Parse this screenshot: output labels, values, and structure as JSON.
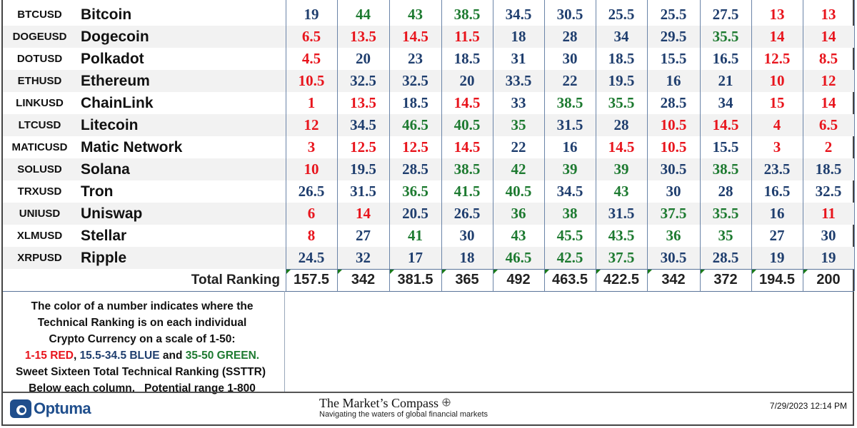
{
  "rows": [
    {
      "ticker": "BTCUSD",
      "name": "Bitcoin",
      "values": [
        19,
        44,
        43,
        38.5,
        34.5,
        30.5,
        25.5,
        25.5,
        27.5,
        13,
        13
      ]
    },
    {
      "ticker": "DOGEUSD",
      "name": "Dogecoin",
      "values": [
        6.5,
        13.5,
        14.5,
        11.5,
        18,
        28,
        34,
        29.5,
        35.5,
        14,
        14
      ]
    },
    {
      "ticker": "DOTUSD",
      "name": "Polkadot",
      "values": [
        4.5,
        20,
        23,
        18.5,
        31,
        30,
        18.5,
        15.5,
        16.5,
        12.5,
        8.5
      ]
    },
    {
      "ticker": "ETHUSD",
      "name": "Ethereum",
      "values": [
        10.5,
        32.5,
        32.5,
        20,
        33.5,
        22,
        19.5,
        16,
        21,
        10,
        12
      ]
    },
    {
      "ticker": "LINKUSD",
      "name": "ChainLink",
      "values": [
        1,
        13.5,
        18.5,
        14.5,
        33,
        38.5,
        35.5,
        28.5,
        34,
        15,
        14
      ]
    },
    {
      "ticker": "LTCUSD",
      "name": "Litecoin",
      "values": [
        12,
        34.5,
        46.5,
        40.5,
        35,
        31.5,
        28,
        10.5,
        14.5,
        4,
        6.5
      ]
    },
    {
      "ticker": "MATICUSD",
      "name": "Matic Network",
      "values": [
        3,
        12.5,
        12.5,
        14.5,
        22,
        16,
        14.5,
        10.5,
        15.5,
        3,
        2
      ]
    },
    {
      "ticker": "SOLUSD",
      "name": "Solana",
      "values": [
        10,
        19.5,
        28.5,
        38.5,
        42,
        39,
        39,
        30.5,
        38.5,
        23.5,
        18.5
      ]
    },
    {
      "ticker": "TRXUSD",
      "name": "Tron",
      "values": [
        26.5,
        31.5,
        36.5,
        41.5,
        40.5,
        34.5,
        43,
        30,
        28,
        16.5,
        32.5
      ]
    },
    {
      "ticker": "UNIUSD",
      "name": "Uniswap",
      "values": [
        6,
        14,
        20.5,
        26.5,
        36,
        38,
        31.5,
        37.5,
        35.5,
        16,
        11
      ]
    },
    {
      "ticker": "XLMUSD",
      "name": "Stellar",
      "values": [
        8,
        27,
        41,
        30,
        43,
        45.5,
        43.5,
        36,
        35,
        27,
        30
      ]
    },
    {
      "ticker": "XRPUSD",
      "name": "Ripple",
      "values": [
        24.5,
        32,
        17,
        18,
        46.5,
        42.5,
        37.5,
        30.5,
        28.5,
        19,
        19
      ]
    }
  ],
  "total": {
    "label": "Total Ranking",
    "values": [
      "157.5",
      "342",
      "381.5",
      "365",
      "492",
      "463.5",
      "422.5",
      "342",
      "372",
      "194.5",
      "200"
    ]
  },
  "color_scale": {
    "red_max": 15,
    "blue_max": 34.5,
    "red": "#e8141c",
    "blue": "#1f3e6e",
    "green": "#1d7a30"
  },
  "legend": {
    "line1": "The color of a number indicates where the",
    "line2": "Technical Ranking is on each individual",
    "line3": "Crypto Currency on a scale of 1-50:",
    "red": "1-15 RED",
    "sep1": ", ",
    "blue": "15.5-34.5 BLUE",
    "sep2": " and ",
    "green": "35-50 GREEN.",
    "line5": "Sweet Sixteen Total Technical Ranking (SSTTR)",
    "line6": "Below each column.   Potential range 1-800"
  },
  "footer": {
    "optuma": "Optuma",
    "compass_title": "The Market’s Compass",
    "compass_sub": "Navigating the waters of global financial markets",
    "timestamp": "7/29/2023 12:14 PM"
  }
}
